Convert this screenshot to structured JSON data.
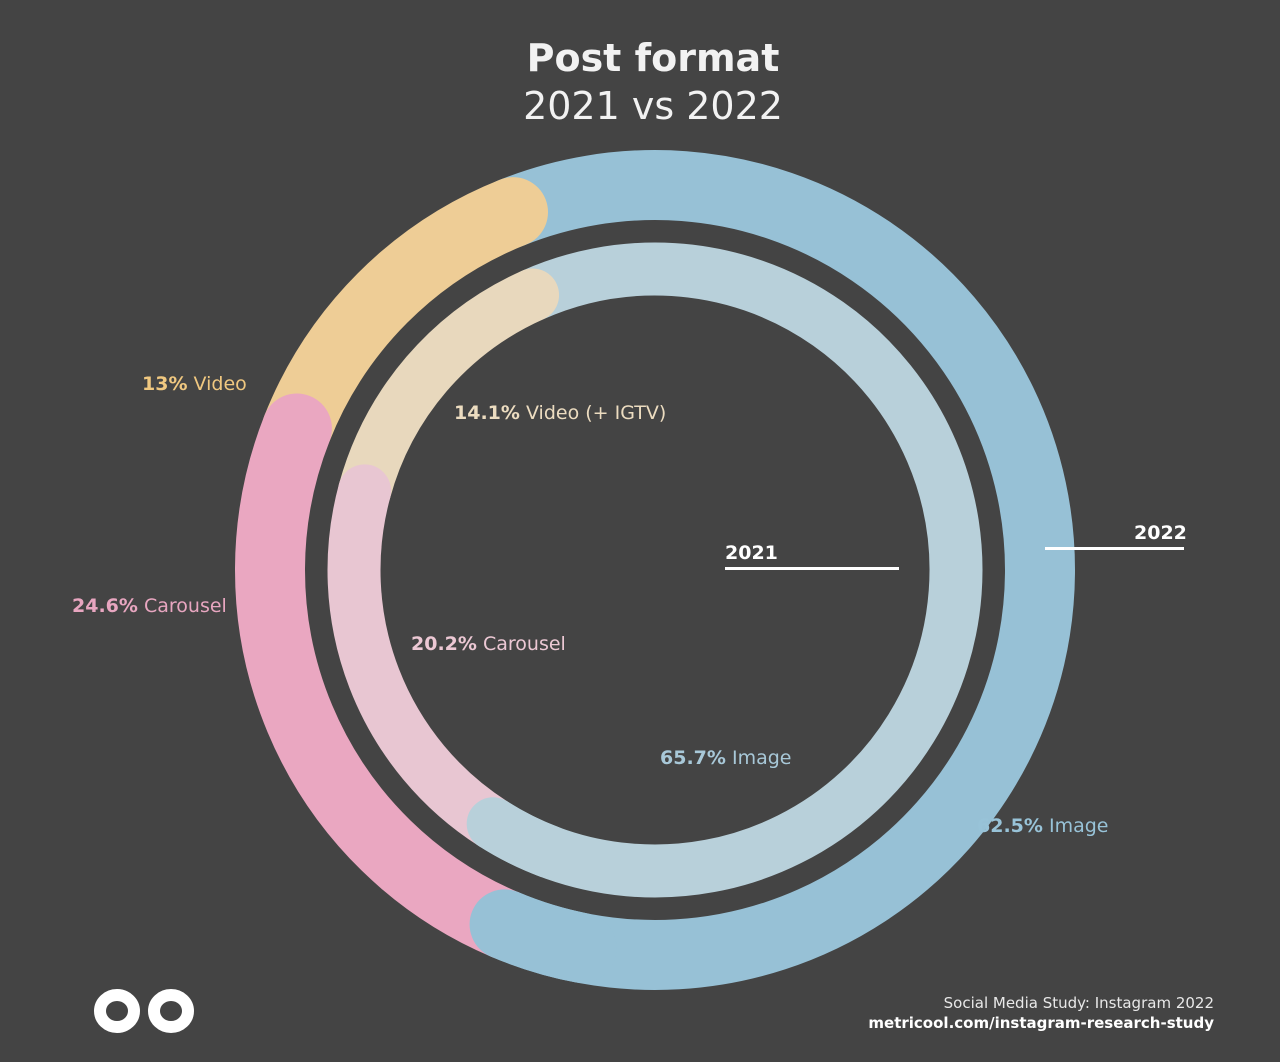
{
  "title": "Post format",
  "subtitle": "2021 vs 2022",
  "chart_data": [
    {
      "type": "pie",
      "series_label": "2022",
      "categories": [
        "Image",
        "Carousel",
        "Video"
      ],
      "values": [
        62.5,
        24.6,
        13
      ],
      "labels": [
        {
          "value": "62.5%",
          "text": "Image"
        },
        {
          "value": "24.6%",
          "text": "Carousel"
        },
        {
          "value": "13%",
          "text": "Video"
        }
      ],
      "colors": [
        "#97c1d6",
        "#eaa7c1",
        "#eecd96"
      ],
      "label_colors": [
        "#98c3d8",
        "#e8a6c0",
        "#f0c880"
      ]
    },
    {
      "type": "pie",
      "series_label": "2021",
      "categories": [
        "Image",
        "Carousel",
        "Video (+ IGTV)"
      ],
      "values": [
        65.7,
        20.2,
        14.1
      ],
      "labels": [
        {
          "value": "65.7%",
          "text": "Image"
        },
        {
          "value": "20.2%",
          "text": "Carousel"
        },
        {
          "value": "14.1%",
          "text": "Video (+ IGTV)"
        }
      ],
      "colors": [
        "#b8d0da",
        "#e8c6d2",
        "#e8d8bd"
      ],
      "label_colors": [
        "#a8c8d8",
        "#ecc8d4",
        "#ecdcc0"
      ]
    }
  ],
  "footer": {
    "study": "Social Media Study: Instagram 2022",
    "url": "metricool.com/instagram-research-study"
  },
  "logo": "metricool-infinity-logo"
}
